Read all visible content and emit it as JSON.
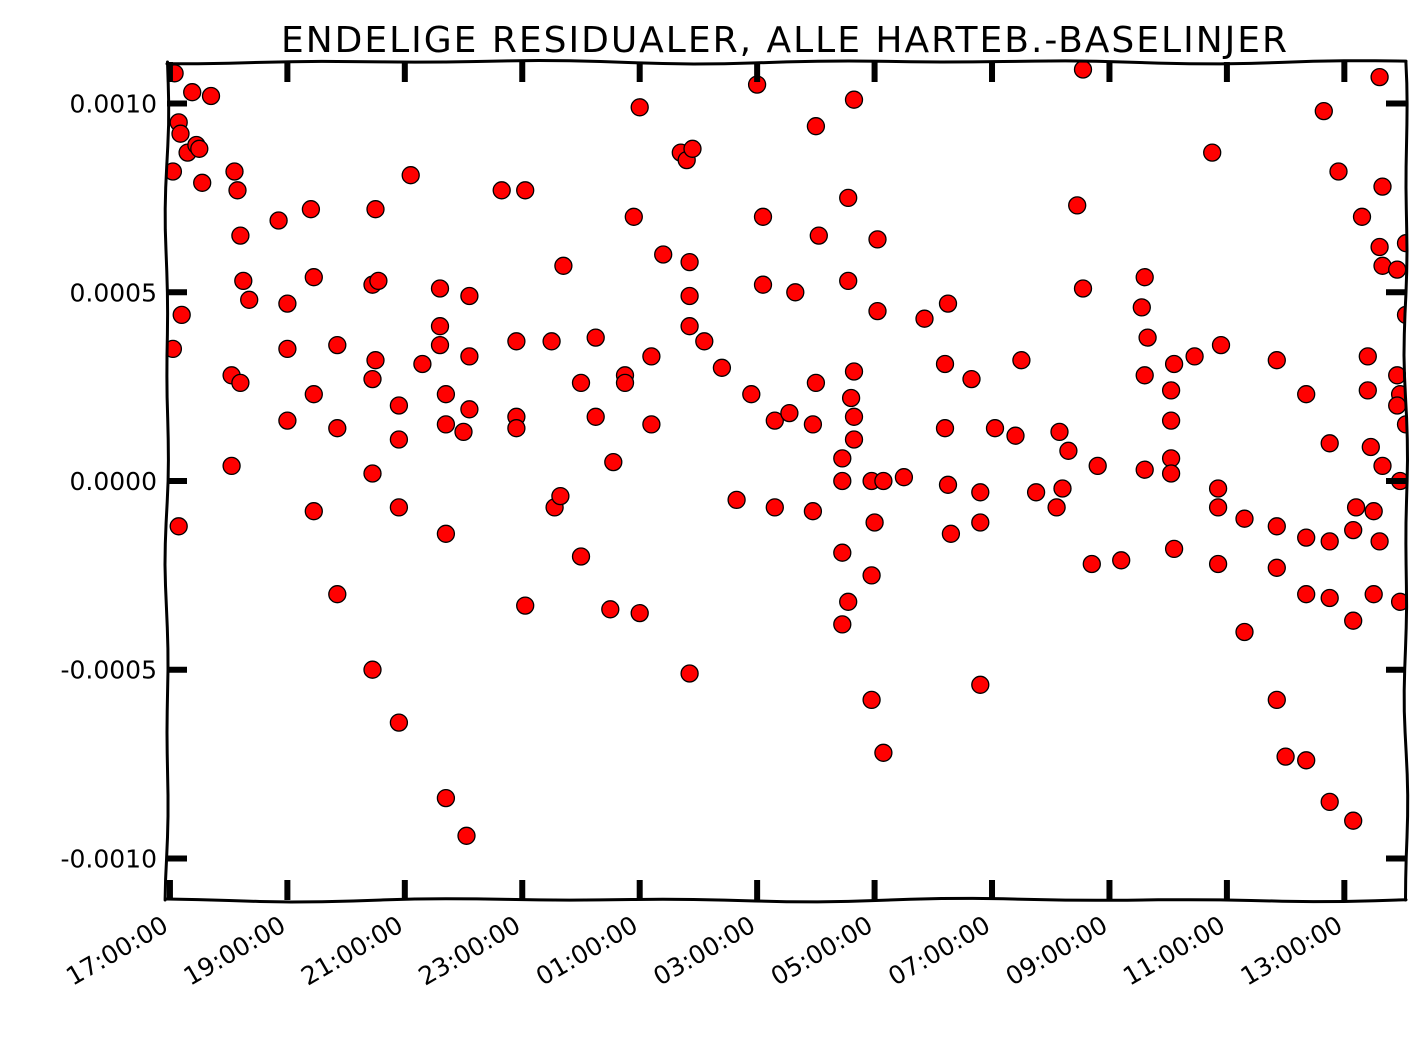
{
  "chart_data": {
    "type": "scatter",
    "title": "ENDELIGE RESIDUALER, ALLE HARTEB.-BASELINJER",
    "xlabel": "",
    "ylabel": "",
    "x_unit": "hours since 17:00:00",
    "xlim": [
      -0.05,
      21.05
    ],
    "ylim": [
      -0.00111,
      0.00111
    ],
    "x_ticks": [
      {
        "value": 0,
        "label": "17:00:00"
      },
      {
        "value": 2,
        "label": "19:00:00"
      },
      {
        "value": 4,
        "label": "21:00:00"
      },
      {
        "value": 6,
        "label": "23:00:00"
      },
      {
        "value": 8,
        "label": "01:00:00"
      },
      {
        "value": 10,
        "label": "03:00:00"
      },
      {
        "value": 12,
        "label": "05:00:00"
      },
      {
        "value": 14,
        "label": "07:00:00"
      },
      {
        "value": 16,
        "label": "09:00:00"
      },
      {
        "value": 18,
        "label": "11:00:00"
      },
      {
        "value": 20,
        "label": "13:00:00"
      }
    ],
    "y_ticks": [
      {
        "value": 0.001,
        "label": "0.0010"
      },
      {
        "value": 0.0005,
        "label": "0.0005"
      },
      {
        "value": 0.0,
        "label": "0.0000"
      },
      {
        "value": -0.0005,
        "label": "-0.0005"
      },
      {
        "value": -0.001,
        "label": "-0.0010"
      }
    ],
    "grid": false,
    "legend": "none",
    "marker_color": "#ff0000",
    "marker_edge_color": "#000000",
    "points": [
      [
        0.08,
        0.00108
      ],
      [
        0.15,
        0.00095
      ],
      [
        0.18,
        0.00092
      ],
      [
        0.3,
        0.00087
      ],
      [
        0.38,
        0.00103
      ],
      [
        0.7,
        0.00102
      ],
      [
        0.45,
        0.00089
      ],
      [
        0.5,
        0.00088
      ],
      [
        0.55,
        0.00079
      ],
      [
        0.05,
        0.00082
      ],
      [
        0.05,
        0.00035
      ],
      [
        0.15,
        -0.00012
      ],
      [
        0.2,
        0.00044
      ],
      [
        1.1,
        0.00082
      ],
      [
        1.15,
        0.00077
      ],
      [
        1.2,
        0.00065
      ],
      [
        1.25,
        0.00053
      ],
      [
        1.35,
        0.00048
      ],
      [
        1.05,
        0.00028
      ],
      [
        1.2,
        0.00026
      ],
      [
        1.05,
        4e-05
      ],
      [
        1.85,
        0.00069
      ],
      [
        2.0,
        0.00047
      ],
      [
        2.0,
        0.00035
      ],
      [
        2.0,
        0.00016
      ],
      [
        2.4,
        0.00072
      ],
      [
        2.45,
        0.00054
      ],
      [
        2.45,
        0.00023
      ],
      [
        2.45,
        -8e-05
      ],
      [
        2.85,
        0.00036
      ],
      [
        2.85,
        0.00014
      ],
      [
        2.85,
        -0.0003
      ],
      [
        3.45,
        0.00052
      ],
      [
        3.5,
        0.00072
      ],
      [
        3.55,
        0.00053
      ],
      [
        3.5,
        0.00032
      ],
      [
        3.45,
        0.00027
      ],
      [
        3.45,
        2e-05
      ],
      [
        3.45,
        -0.0005
      ],
      [
        3.9,
        0.0002
      ],
      [
        3.9,
        0.00011
      ],
      [
        3.9,
        -7e-05
      ],
      [
        3.9,
        -0.00064
      ],
      [
        4.1,
        0.00081
      ],
      [
        4.3,
        0.00031
      ],
      [
        4.6,
        0.00051
      ],
      [
        4.6,
        0.00041
      ],
      [
        4.6,
        0.00036
      ],
      [
        4.7,
        0.00023
      ],
      [
        4.7,
        0.00015
      ],
      [
        4.7,
        -0.00014
      ],
      [
        4.7,
        -0.00084
      ],
      [
        5.0,
        0.00013
      ],
      [
        5.1,
        0.00049
      ],
      [
        5.1,
        0.00033
      ],
      [
        5.1,
        0.00019
      ],
      [
        5.05,
        -0.00094
      ],
      [
        5.65,
        0.00077
      ],
      [
        5.9,
        0.00037
      ],
      [
        5.9,
        0.00017
      ],
      [
        5.9,
        0.00014
      ],
      [
        6.05,
        0.00077
      ],
      [
        6.05,
        -0.00033
      ],
      [
        6.5,
        0.00037
      ],
      [
        6.55,
        -7e-05
      ],
      [
        6.65,
        -4e-05
      ],
      [
        6.7,
        0.00057
      ],
      [
        7.0,
        0.00026
      ],
      [
        7.0,
        -0.0002
      ],
      [
        7.25,
        0.00038
      ],
      [
        7.25,
        0.00017
      ],
      [
        7.55,
        5e-05
      ],
      [
        7.5,
        -0.00034
      ],
      [
        7.75,
        0.00028
      ],
      [
        7.75,
        0.00026
      ],
      [
        8.0,
        0.00099
      ],
      [
        7.9,
        0.0007
      ],
      [
        8.0,
        -0.00035
      ],
      [
        8.2,
        0.00033
      ],
      [
        8.2,
        0.00015
      ],
      [
        8.4,
        0.0006
      ],
      [
        8.7,
        0.00087
      ],
      [
        8.8,
        0.00085
      ],
      [
        8.9,
        0.00088
      ],
      [
        8.85,
        0.00058
      ],
      [
        8.85,
        0.00049
      ],
      [
        8.85,
        0.00041
      ],
      [
        9.1,
        0.00037
      ],
      [
        8.85,
        -0.00051
      ],
      [
        9.4,
        0.0003
      ],
      [
        9.65,
        -5e-05
      ],
      [
        9.9,
        0.00023
      ],
      [
        10.1,
        0.0007
      ],
      [
        10.1,
        0.00052
      ],
      [
        10.0,
        0.00105
      ],
      [
        10.3,
        0.00016
      ],
      [
        10.3,
        -7e-05
      ],
      [
        10.55,
        0.00018
      ],
      [
        10.65,
        0.0005
      ],
      [
        11.0,
        0.00094
      ],
      [
        11.05,
        0.00065
      ],
      [
        11.0,
        0.00026
      ],
      [
        10.95,
        0.00015
      ],
      [
        10.95,
        -8e-05
      ],
      [
        11.55,
        0.00075
      ],
      [
        11.55,
        0.00053
      ],
      [
        11.65,
        0.00101
      ],
      [
        11.45,
        6e-05
      ],
      [
        11.45,
        0.0
      ],
      [
        11.45,
        -0.00019
      ],
      [
        11.55,
        -0.00032
      ],
      [
        11.45,
        -0.00038
      ],
      [
        11.65,
        0.00029
      ],
      [
        11.6,
        0.00022
      ],
      [
        11.65,
        0.00017
      ],
      [
        11.65,
        0.00011
      ],
      [
        12.05,
        0.00064
      ],
      [
        12.05,
        0.00045
      ],
      [
        11.95,
        0.0
      ],
      [
        12.15,
        0.0
      ],
      [
        12.0,
        -0.00011
      ],
      [
        11.95,
        -0.00025
      ],
      [
        11.95,
        -0.00058
      ],
      [
        12.15,
        -0.00072
      ],
      [
        12.5,
        1e-05
      ],
      [
        12.85,
        0.00043
      ],
      [
        13.25,
        0.00047
      ],
      [
        13.2,
        0.00031
      ],
      [
        13.2,
        0.00014
      ],
      [
        13.25,
        -1e-05
      ],
      [
        13.3,
        -0.00014
      ],
      [
        13.65,
        0.00027
      ],
      [
        13.8,
        -3e-05
      ],
      [
        13.8,
        -0.00011
      ],
      [
        13.8,
        -0.00054
      ],
      [
        14.05,
        0.00014
      ],
      [
        14.4,
        0.00012
      ],
      [
        14.5,
        0.00032
      ],
      [
        14.75,
        -3e-05
      ],
      [
        15.15,
        0.00013
      ],
      [
        15.3,
        8e-05
      ],
      [
        15.2,
        -2e-05
      ],
      [
        15.1,
        -7e-05
      ],
      [
        15.55,
        0.00109
      ],
      [
        15.45,
        0.00073
      ],
      [
        15.55,
        0.00051
      ],
      [
        15.8,
        4e-05
      ],
      [
        15.7,
        -0.00022
      ],
      [
        16.2,
        -0.00021
      ],
      [
        16.6,
        0.00054
      ],
      [
        16.55,
        0.00046
      ],
      [
        16.65,
        0.00038
      ],
      [
        16.6,
        0.00028
      ],
      [
        16.6,
        3e-05
      ],
      [
        17.1,
        0.00031
      ],
      [
        17.05,
        0.00024
      ],
      [
        17.05,
        0.00016
      ],
      [
        17.05,
        6e-05
      ],
      [
        17.05,
        2e-05
      ],
      [
        17.1,
        -0.00018
      ],
      [
        17.45,
        0.00033
      ],
      [
        17.75,
        0.00087
      ],
      [
        17.9,
        0.00036
      ],
      [
        17.85,
        -2e-05
      ],
      [
        17.85,
        -7e-05
      ],
      [
        17.85,
        -0.00022
      ],
      [
        18.3,
        -0.0001
      ],
      [
        18.3,
        -0.0004
      ],
      [
        18.85,
        0.00032
      ],
      [
        18.85,
        -0.00012
      ],
      [
        18.85,
        -0.00023
      ],
      [
        18.85,
        -0.00058
      ],
      [
        19.0,
        -0.00073
      ],
      [
        19.35,
        -0.00074
      ],
      [
        19.35,
        0.00023
      ],
      [
        19.35,
        -0.00015
      ],
      [
        19.35,
        -0.0003
      ],
      [
        19.65,
        0.00098
      ],
      [
        19.9,
        0.00082
      ],
      [
        19.75,
        0.0001
      ],
      [
        19.75,
        -0.00016
      ],
      [
        19.75,
        -0.00031
      ],
      [
        19.75,
        -0.00085
      ],
      [
        20.15,
        -0.00037
      ],
      [
        20.15,
        -0.0009
      ],
      [
        20.15,
        -0.00013
      ],
      [
        20.2,
        -7e-05
      ],
      [
        20.3,
        0.0007
      ],
      [
        20.4,
        0.00033
      ],
      [
        20.4,
        0.00024
      ],
      [
        20.45,
        9e-05
      ],
      [
        20.5,
        -8e-05
      ],
      [
        20.5,
        -0.0003
      ],
      [
        20.6,
        0.00107
      ],
      [
        20.6,
        0.00062
      ],
      [
        20.65,
        0.00057
      ],
      [
        20.65,
        0.00078
      ],
      [
        20.65,
        4e-05
      ],
      [
        20.6,
        -0.00016
      ],
      [
        20.9,
        0.00056
      ],
      [
        20.9,
        0.00028
      ],
      [
        20.95,
        0.00023
      ],
      [
        20.9,
        0.0002
      ],
      [
        20.95,
        0.0
      ],
      [
        20.95,
        -0.00032
      ],
      [
        21.05,
        0.00044
      ],
      [
        21.05,
        0.00015
      ],
      [
        21.05,
        0.00063
      ]
    ]
  }
}
